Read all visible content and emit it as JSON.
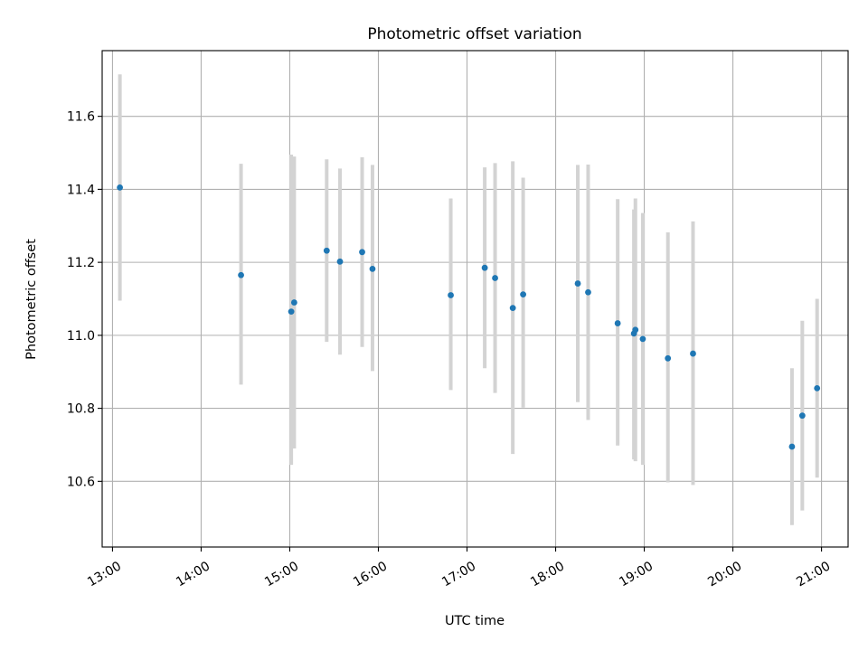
{
  "chart_data": {
    "type": "scatter",
    "title": "Photometric offset variation",
    "xlabel": "UTC time",
    "ylabel": "Photometric offset",
    "xlim": [
      "12:53",
      "21:18"
    ],
    "ylim": [
      10.42,
      11.78
    ],
    "xticks": [
      "13:00",
      "14:00",
      "15:00",
      "16:00",
      "17:00",
      "18:00",
      "19:00",
      "20:00",
      "21:00"
    ],
    "yticks": [
      "10.6",
      "10.8",
      "11.0",
      "11.2",
      "11.4",
      "11.6"
    ],
    "grid": true,
    "point_color": "#1f77b4",
    "errorbar_color": "#d3d3d3",
    "points": [
      {
        "t": "13:05",
        "y": 11.405,
        "lo": 11.095,
        "hi": 11.715
      },
      {
        "t": "14:27",
        "y": 11.165,
        "lo": 10.865,
        "hi": 11.47
      },
      {
        "t": "15:01",
        "y": 11.065,
        "lo": 10.645,
        "hi": 11.495
      },
      {
        "t": "15:03",
        "y": 11.09,
        "lo": 10.69,
        "hi": 11.49
      },
      {
        "t": "15:25",
        "y": 11.232,
        "lo": 10.982,
        "hi": 11.482
      },
      {
        "t": "15:34",
        "y": 11.202,
        "lo": 10.947,
        "hi": 11.457
      },
      {
        "t": "15:49",
        "y": 11.228,
        "lo": 10.968,
        "hi": 11.488
      },
      {
        "t": "15:56",
        "y": 11.182,
        "lo": 10.902,
        "hi": 11.467
      },
      {
        "t": "16:49",
        "y": 11.11,
        "lo": 10.85,
        "hi": 11.375
      },
      {
        "t": "17:12",
        "y": 11.185,
        "lo": 10.91,
        "hi": 11.46
      },
      {
        "t": "17:19",
        "y": 11.157,
        "lo": 10.842,
        "hi": 11.472
      },
      {
        "t": "17:31",
        "y": 11.075,
        "lo": 10.675,
        "hi": 11.477
      },
      {
        "t": "17:38",
        "y": 11.112,
        "lo": 10.802,
        "hi": 11.432
      },
      {
        "t": "18:15",
        "y": 11.142,
        "lo": 10.817,
        "hi": 11.467
      },
      {
        "t": "18:22",
        "y": 11.118,
        "lo": 10.768,
        "hi": 11.468
      },
      {
        "t": "18:42",
        "y": 11.033,
        "lo": 10.698,
        "hi": 11.373
      },
      {
        "t": "18:53",
        "y": 11.005,
        "lo": 10.66,
        "hi": 11.345
      },
      {
        "t": "18:54",
        "y": 11.015,
        "lo": 10.655,
        "hi": 11.375
      },
      {
        "t": "18:59",
        "y": 10.99,
        "lo": 10.645,
        "hi": 11.335
      },
      {
        "t": "19:16",
        "y": 10.937,
        "lo": 10.597,
        "hi": 11.282
      },
      {
        "t": "19:33",
        "y": 10.95,
        "lo": 10.59,
        "hi": 11.312
      },
      {
        "t": "20:40",
        "y": 10.695,
        "lo": 10.48,
        "hi": 10.91
      },
      {
        "t": "20:47",
        "y": 10.78,
        "lo": 10.52,
        "hi": 11.04
      },
      {
        "t": "20:57",
        "y": 10.855,
        "lo": 10.61,
        "hi": 11.1
      }
    ]
  }
}
